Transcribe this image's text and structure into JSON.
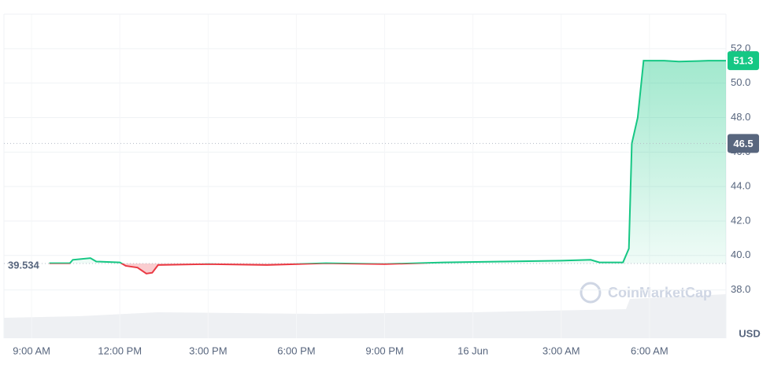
{
  "chart_data": {
    "type": "line",
    "x": [
      0.6,
      1.3,
      1.4,
      2.0,
      2.2,
      3.0,
      3.2,
      3.6,
      3.9,
      4.1,
      4.3,
      6,
      8,
      10,
      12,
      14,
      16,
      18,
      19,
      19.3,
      20.1,
      20.3,
      20.4,
      20.6,
      20.8,
      21.5,
      22,
      23,
      23.6
    ],
    "series": [
      {
        "color": "#16c784",
        "down_color": "#ea3943",
        "values": [
          39.55,
          39.55,
          39.75,
          39.85,
          39.65,
          39.6,
          39.4,
          39.3,
          38.95,
          39.0,
          39.45,
          39.5,
          39.45,
          39.55,
          39.5,
          39.6,
          39.65,
          39.7,
          39.75,
          39.6,
          39.6,
          40.4,
          46.5,
          48.0,
          51.3,
          51.3,
          51.25,
          51.3,
          51.3
        ]
      }
    ],
    "xlim": [
      -0.94,
      23.6
    ],
    "xticks": [
      {
        "value": 0,
        "label": "9:00 AM"
      },
      {
        "value": 3,
        "label": "12:00 PM"
      },
      {
        "value": 6,
        "label": "3:00 PM"
      },
      {
        "value": 9,
        "label": "6:00 PM"
      },
      {
        "value": 12,
        "label": "9:00 PM"
      },
      {
        "value": 15,
        "label": "16 Jun"
      },
      {
        "value": 18,
        "label": "3:00 AM"
      },
      {
        "value": 21,
        "label": "6:00 AM"
      }
    ],
    "ylim": [
      35.2,
      54.0
    ],
    "yticks": [
      {
        "value": 38,
        "label": "38.0"
      },
      {
        "value": 40,
        "label": "40.0"
      },
      {
        "value": 42,
        "label": "42.0"
      },
      {
        "value": 44,
        "label": "44.0"
      },
      {
        "value": 46,
        "label": "46.0"
      },
      {
        "value": 48,
        "label": "48.0"
      },
      {
        "value": 50,
        "label": "50.0"
      },
      {
        "value": 52,
        "label": "52.0"
      }
    ],
    "baseline": 39.534,
    "hover_price": 46.5,
    "last_price": 51.3,
    "unit": "USD",
    "watermark": "CoinMarketCap",
    "grid": true
  }
}
